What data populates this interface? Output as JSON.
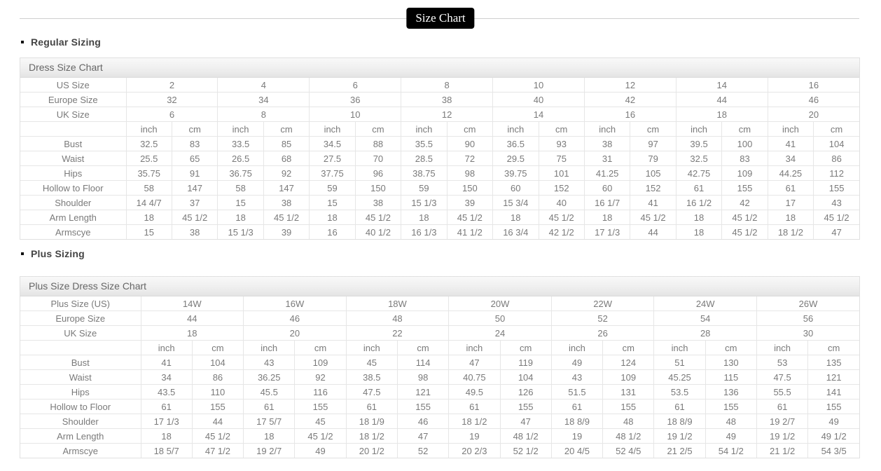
{
  "page": {
    "title_badge": "Size Chart"
  },
  "colors": {
    "badge_bg": "#000000",
    "badge_text": "#ffffff",
    "table_border": "#e0e0e0",
    "cell_text": "#7a7a7a",
    "heading_text": "#444444"
  },
  "sections": [
    {
      "heading": "Regular Sizing",
      "table": {
        "title": "Dress Size Chart",
        "size_rows": [
          {
            "label": "US Size",
            "values": [
              "2",
              "4",
              "6",
              "8",
              "10",
              "12",
              "14",
              "16"
            ]
          },
          {
            "label": "Europe Size",
            "values": [
              "32",
              "34",
              "36",
              "38",
              "40",
              "42",
              "44",
              "46"
            ]
          },
          {
            "label": "UK Size",
            "values": [
              "6",
              "8",
              "10",
              "12",
              "14",
              "16",
              "18",
              "20"
            ]
          }
        ],
        "unit_headers": [
          "inch",
          "cm"
        ],
        "measure_rows": [
          {
            "label": "Bust",
            "values": [
              [
                "32.5",
                "83"
              ],
              [
                "33.5",
                "85"
              ],
              [
                "34.5",
                "88"
              ],
              [
                "35.5",
                "90"
              ],
              [
                "36.5",
                "93"
              ],
              [
                "38",
                "97"
              ],
              [
                "39.5",
                "100"
              ],
              [
                "41",
                "104"
              ]
            ]
          },
          {
            "label": "Waist",
            "values": [
              [
                "25.5",
                "65"
              ],
              [
                "26.5",
                "68"
              ],
              [
                "27.5",
                "70"
              ],
              [
                "28.5",
                "72"
              ],
              [
                "29.5",
                "75"
              ],
              [
                "31",
                "79"
              ],
              [
                "32.5",
                "83"
              ],
              [
                "34",
                "86"
              ]
            ]
          },
          {
            "label": "Hips",
            "values": [
              [
                "35.75",
                "91"
              ],
              [
                "36.75",
                "92"
              ],
              [
                "37.75",
                "96"
              ],
              [
                "38.75",
                "98"
              ],
              [
                "39.75",
                "101"
              ],
              [
                "41.25",
                "105"
              ],
              [
                "42.75",
                "109"
              ],
              [
                "44.25",
                "112"
              ]
            ]
          },
          {
            "label": "Hollow to Floor",
            "values": [
              [
                "58",
                "147"
              ],
              [
                "58",
                "147"
              ],
              [
                "59",
                "150"
              ],
              [
                "59",
                "150"
              ],
              [
                "60",
                "152"
              ],
              [
                "60",
                "152"
              ],
              [
                "61",
                "155"
              ],
              [
                "61",
                "155"
              ]
            ]
          },
          {
            "label": "Shoulder",
            "values": [
              [
                "14 4/7",
                "37"
              ],
              [
                "15",
                "38"
              ],
              [
                "15",
                "38"
              ],
              [
                "15 1/3",
                "39"
              ],
              [
                "15 3/4",
                "40"
              ],
              [
                "16 1/7",
                "41"
              ],
              [
                "16 1/2",
                "42"
              ],
              [
                "17",
                "43"
              ]
            ]
          },
          {
            "label": "Arm Length",
            "values": [
              [
                "18",
                "45 1/2"
              ],
              [
                "18",
                "45 1/2"
              ],
              [
                "18",
                "45 1/2"
              ],
              [
                "18",
                "45 1/2"
              ],
              [
                "18",
                "45 1/2"
              ],
              [
                "18",
                "45 1/2"
              ],
              [
                "18",
                "45 1/2"
              ],
              [
                "18",
                "45 1/2"
              ]
            ]
          },
          {
            "label": "Armscye",
            "values": [
              [
                "15",
                "38"
              ],
              [
                "15 1/3",
                "39"
              ],
              [
                "16",
                "40 1/2"
              ],
              [
                "16 1/3",
                "41 1/2"
              ],
              [
                "16 3/4",
                "42 1/2"
              ],
              [
                "17 1/3",
                "44"
              ],
              [
                "18",
                "45 1/2"
              ],
              [
                "18 1/2",
                "47"
              ]
            ]
          }
        ]
      }
    },
    {
      "heading": "Plus Sizing",
      "table": {
        "title": "Plus Size Dress Size Chart",
        "size_rows": [
          {
            "label": "Plus Size (US)",
            "values": [
              "14W",
              "16W",
              "18W",
              "20W",
              "22W",
              "24W",
              "26W"
            ]
          },
          {
            "label": "Europe Size",
            "values": [
              "44",
              "46",
              "48",
              "50",
              "52",
              "54",
              "56"
            ]
          },
          {
            "label": "UK Size",
            "values": [
              "18",
              "20",
              "22",
              "24",
              "26",
              "28",
              "30"
            ]
          }
        ],
        "unit_headers": [
          "inch",
          "cm"
        ],
        "measure_rows": [
          {
            "label": "Bust",
            "values": [
              [
                "41",
                "104"
              ],
              [
                "43",
                "109"
              ],
              [
                "45",
                "114"
              ],
              [
                "47",
                "119"
              ],
              [
                "49",
                "124"
              ],
              [
                "51",
                "130"
              ],
              [
                "53",
                "135"
              ]
            ]
          },
          {
            "label": "Waist",
            "values": [
              [
                "34",
                "86"
              ],
              [
                "36.25",
                "92"
              ],
              [
                "38.5",
                "98"
              ],
              [
                "40.75",
                "104"
              ],
              [
                "43",
                "109"
              ],
              [
                "45.25",
                "115"
              ],
              [
                "47.5",
                "121"
              ]
            ]
          },
          {
            "label": "Hips",
            "values": [
              [
                "43.5",
                "110"
              ],
              [
                "45.5",
                "116"
              ],
              [
                "47.5",
                "121"
              ],
              [
                "49.5",
                "126"
              ],
              [
                "51.5",
                "131"
              ],
              [
                "53.5",
                "136"
              ],
              [
                "55.5",
                "141"
              ]
            ]
          },
          {
            "label": "Hollow to Floor",
            "values": [
              [
                "61",
                "155"
              ],
              [
                "61",
                "155"
              ],
              [
                "61",
                "155"
              ],
              [
                "61",
                "155"
              ],
              [
                "61",
                "155"
              ],
              [
                "61",
                "155"
              ],
              [
                "61",
                "155"
              ]
            ]
          },
          {
            "label": "Shoulder",
            "values": [
              [
                "17 1/3",
                "44"
              ],
              [
                "17 5/7",
                "45"
              ],
              [
                "18 1/9",
                "46"
              ],
              [
                "18 1/2",
                "47"
              ],
              [
                "18 8/9",
                "48"
              ],
              [
                "18 8/9",
                "48"
              ],
              [
                "19 2/7",
                "49"
              ]
            ]
          },
          {
            "label": "Arm Length",
            "values": [
              [
                "18",
                "45 1/2"
              ],
              [
                "18",
                "45 1/2"
              ],
              [
                "18 1/2",
                "47"
              ],
              [
                "19",
                "48 1/2"
              ],
              [
                "19",
                "48 1/2"
              ],
              [
                "19 1/2",
                "49"
              ],
              [
                "19 1/2",
                "49 1/2"
              ]
            ]
          },
          {
            "label": "Armscye",
            "values": [
              [
                "18 5/7",
                "47 1/2"
              ],
              [
                "19 2/7",
                "49"
              ],
              [
                "20 1/2",
                "52"
              ],
              [
                "20 2/3",
                "52 1/2"
              ],
              [
                "20 4/5",
                "52 4/5"
              ],
              [
                "21 2/5",
                "54 1/2"
              ],
              [
                "21 1/2",
                "54 3/5"
              ]
            ]
          }
        ]
      }
    }
  ]
}
